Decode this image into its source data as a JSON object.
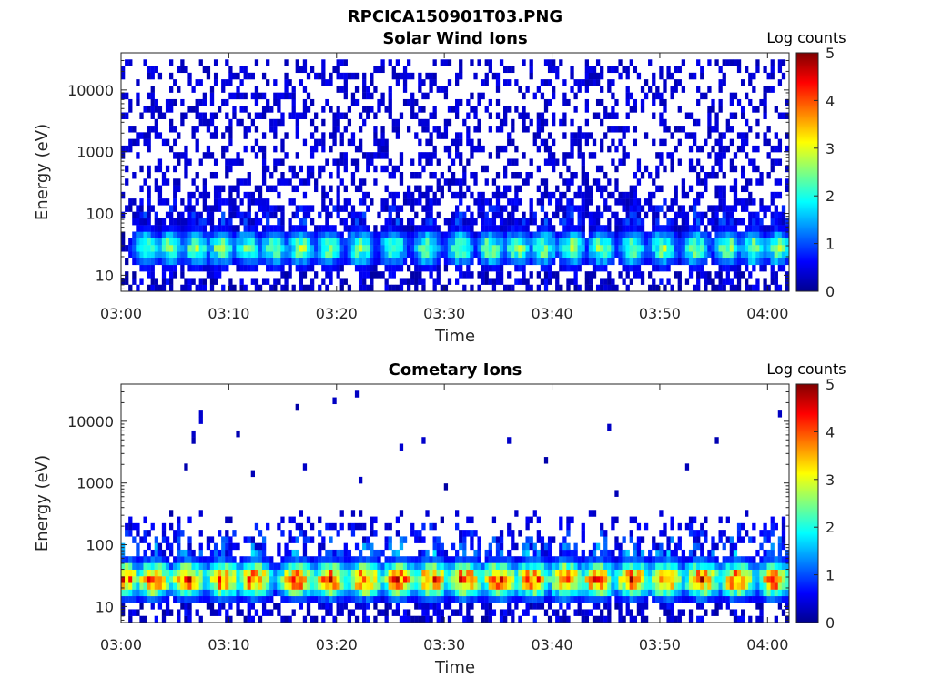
{
  "figure_title": "RPCICA150901T03.PNG",
  "chart_data": [
    {
      "type": "heatmap",
      "title": "Solar Wind Ions",
      "xlabel": "Time",
      "ylabel": "Energy (eV)",
      "x_range": [
        "03:00",
        "04:02"
      ],
      "x_ticks": [
        "03:00",
        "03:10",
        "03:20",
        "03:30",
        "03:40",
        "03:50",
        "04:00"
      ],
      "y_scale": "log",
      "y_range": [
        5.5,
        40000
      ],
      "y_ticks": [
        "10",
        "100",
        "1000",
        "10000"
      ],
      "colorbar": {
        "label": "Log counts",
        "range": [
          0,
          5
        ],
        "ticks": [
          "0",
          "1",
          "2",
          "3",
          "4",
          "5"
        ],
        "colormap": "jet"
      },
      "burst_times_min": [
        2.3,
        4.6,
        7.0,
        9.3,
        11.8,
        14.2,
        16.7,
        19.3,
        22.2,
        25.3,
        28.4,
        31.5,
        34.3,
        36.8,
        39.2,
        41.8,
        44.6,
        47.5,
        50.3,
        53.3,
        56.3,
        58.7,
        61.0
      ],
      "burst_peak_log_counts": 2.6,
      "band_energy_eV": [
        17,
        45
      ],
      "background_energy_eV": [
        50,
        30000
      ],
      "background_log_counts": 0.4
    },
    {
      "type": "heatmap",
      "title": "Cometary Ions",
      "xlabel": "Time",
      "ylabel": "Energy (eV)",
      "x_range": [
        "03:00",
        "04:02"
      ],
      "x_ticks": [
        "03:00",
        "03:10",
        "03:20",
        "03:30",
        "03:40",
        "03:50",
        "04:00"
      ],
      "y_scale": "log",
      "y_range": [
        5.5,
        40000
      ],
      "y_ticks": [
        "10",
        "100",
        "1000",
        "10000"
      ],
      "colorbar": {
        "label": "Log counts",
        "range": [
          0,
          5
        ],
        "ticks": [
          "0",
          "1",
          "2",
          "3",
          "4",
          "5"
        ],
        "colormap": "jet"
      },
      "burst_times_min": [
        0.2,
        3.0,
        6.2,
        9.5,
        12.4,
        16.3,
        19.4,
        22.6,
        25.8,
        28.8,
        31.9,
        35.1,
        38.2,
        41.3,
        44.2,
        47.5,
        50.6,
        53.9,
        57.2,
        60.7
      ],
      "burst_peak_log_counts": 4.2,
      "band_energy_eV": [
        15,
        50
      ],
      "background_energy_eV": [
        100,
        30000
      ],
      "background_log_counts": 0.3
    }
  ]
}
